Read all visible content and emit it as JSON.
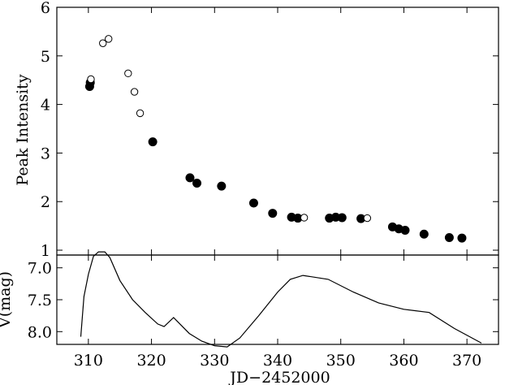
{
  "chart_data": [
    {
      "type": "scatter",
      "ylabel": "Peak Intensity",
      "xlim": [
        305,
        375
      ],
      "ylim": [
        0.9,
        6.0
      ],
      "yticks": [
        1,
        2,
        3,
        4,
        5,
        6
      ],
      "grid": false,
      "series": [
        {
          "marker": "filled-circle",
          "points": [
            [
              310.2,
              4.37
            ],
            [
              310.3,
              4.45
            ],
            [
              320.2,
              3.23
            ],
            [
              326.1,
              2.49
            ],
            [
              327.2,
              2.38
            ],
            [
              331.1,
              2.32
            ],
            [
              336.2,
              1.97
            ],
            [
              339.2,
              1.76
            ],
            [
              342.2,
              1.68
            ],
            [
              343.2,
              1.66
            ],
            [
              348.2,
              1.66
            ],
            [
              349.2,
              1.68
            ],
            [
              350.2,
              1.67
            ],
            [
              353.2,
              1.65
            ],
            [
              358.2,
              1.48
            ],
            [
              359.2,
              1.44
            ],
            [
              360.2,
              1.41
            ],
            [
              363.2,
              1.33
            ],
            [
              367.2,
              1.26
            ],
            [
              369.2,
              1.25
            ]
          ]
        },
        {
          "marker": "open-circle",
          "points": [
            [
              310.4,
              4.52
            ],
            [
              312.3,
              5.26
            ],
            [
              313.2,
              5.35
            ],
            [
              316.3,
              4.64
            ],
            [
              317.3,
              4.26
            ],
            [
              318.2,
              3.82
            ],
            [
              344.2,
              1.67
            ],
            [
              354.2,
              1.66
            ]
          ]
        }
      ]
    },
    {
      "type": "line",
      "xlabel": "JD−2452000",
      "ylabel": "V(mag)",
      "xlim": [
        305,
        375
      ],
      "xticks": [
        310,
        320,
        330,
        340,
        350,
        360,
        370
      ],
      "ylim": [
        8.2,
        6.8
      ],
      "yticks": [
        "7.0",
        "7.5",
        "8.0"
      ],
      "y_inverted": true,
      "grid": false,
      "series": [
        {
          "x": [
            308.8,
            309.3,
            310.0,
            310.8,
            311.6,
            312.6,
            313.4,
            315.0,
            317.0,
            319.0,
            321.0,
            322.0,
            323.5,
            326.0,
            328.0,
            330.0,
            332.0,
            334.0,
            337.0,
            340.0,
            342.0,
            344.0,
            348.0,
            352.0,
            356.0,
            360.0,
            364.0,
            368.0,
            372.3
          ],
          "y": [
            8.08,
            7.45,
            7.1,
            6.82,
            6.75,
            6.75,
            6.84,
            7.2,
            7.5,
            7.7,
            7.88,
            7.92,
            7.78,
            8.03,
            8.15,
            8.22,
            8.24,
            8.1,
            7.75,
            7.38,
            7.18,
            7.12,
            7.18,
            7.38,
            7.55,
            7.65,
            7.7,
            7.95,
            8.18
          ]
        }
      ]
    }
  ]
}
